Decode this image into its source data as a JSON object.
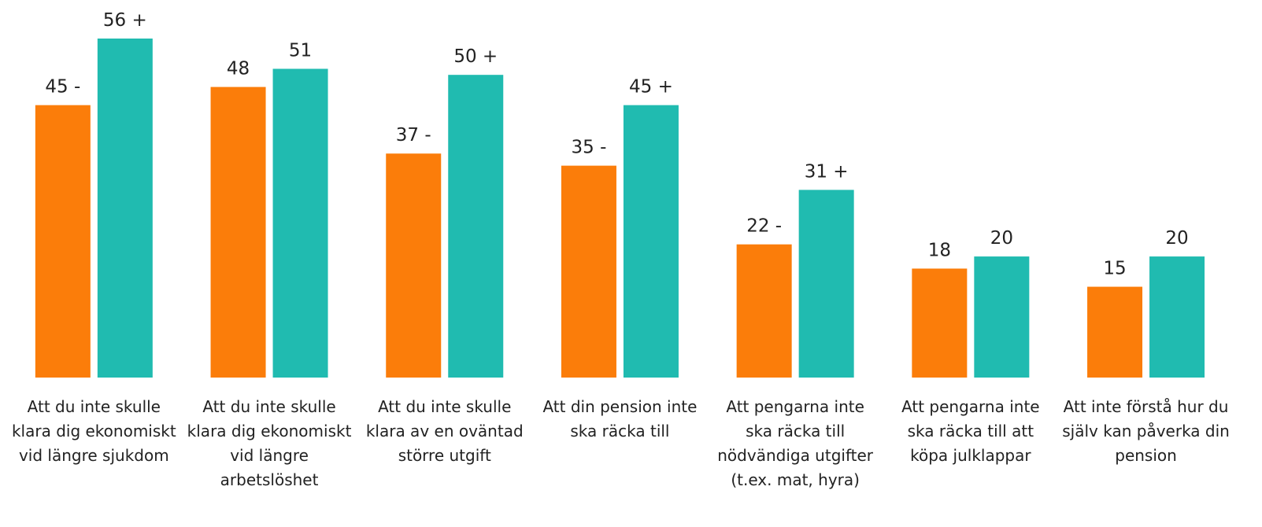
{
  "chart_data": {
    "type": "bar",
    "categories": [
      "Att du inte skulle klara dig ekonomiskt vid längre sjukdom",
      "Att du inte skulle klara dig ekonomiskt vid längre arbetslöshet",
      "Att du inte skulle klara av en oväntad större utgift",
      "Att din pension inte ska räcka till",
      "Att pengarna inte ska räcka till nödvändiga utgifter (t.ex. mat, hyra)",
      "Att pengarna inte ska räcka till att köpa julklappar",
      "Att inte förstå hur du själv kan påverka din pension"
    ],
    "series": [
      {
        "color": "#fb7d0a",
        "values": [
          45,
          48,
          37,
          35,
          22,
          18,
          15
        ],
        "value_labels": [
          "45 -",
          "48",
          "37 -",
          "35 -",
          "22 -",
          "18",
          "15"
        ]
      },
      {
        "color": "#20bbb0",
        "values": [
          56,
          51,
          50,
          45,
          31,
          20,
          20
        ],
        "value_labels": [
          "56 +",
          "51",
          "50 +",
          "45 +",
          "31 +",
          "20",
          "20"
        ]
      }
    ]
  }
}
